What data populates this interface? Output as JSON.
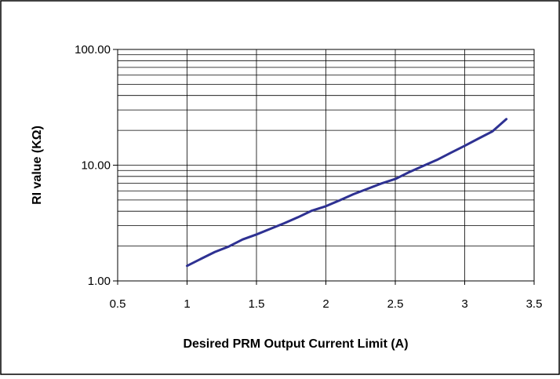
{
  "chart_data": {
    "type": "line",
    "title": "",
    "xlabel": "Desired PRM Output Current Limit (A)",
    "ylabel": "RI value (KΩ)",
    "xlim": [
      0.5,
      3.5
    ],
    "ylim": [
      1,
      100
    ],
    "yscale": "log",
    "grid": true,
    "legend": "none",
    "x_ticks": [
      "0.5",
      "1",
      "1.5",
      "2",
      "2.5",
      "3",
      "3.5"
    ],
    "y_ticks": [
      "1.00",
      "10.00",
      "100.00"
    ],
    "series": [
      {
        "color": "#2e3192",
        "points": [
          [
            1.0,
            1.35
          ],
          [
            1.1,
            1.55
          ],
          [
            1.2,
            1.78
          ],
          [
            1.3,
            1.98
          ],
          [
            1.4,
            2.28
          ],
          [
            1.5,
            2.52
          ],
          [
            1.6,
            2.82
          ],
          [
            1.7,
            3.15
          ],
          [
            1.8,
            3.55
          ],
          [
            1.9,
            4.05
          ],
          [
            2.0,
            4.42
          ],
          [
            2.1,
            4.98
          ],
          [
            2.2,
            5.62
          ],
          [
            2.3,
            6.25
          ],
          [
            2.4,
            6.95
          ],
          [
            2.5,
            7.6
          ],
          [
            2.6,
            8.7
          ],
          [
            2.7,
            9.85
          ],
          [
            2.8,
            11.1
          ],
          [
            2.9,
            12.8
          ],
          [
            3.0,
            14.7
          ],
          [
            3.1,
            17.0
          ],
          [
            3.2,
            19.6
          ],
          [
            3.3,
            25.0
          ]
        ]
      }
    ]
  }
}
